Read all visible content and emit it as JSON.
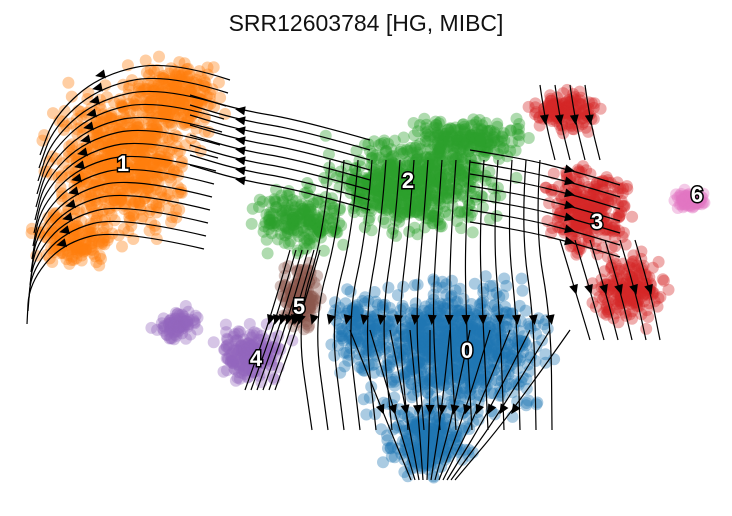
{
  "title": "SRR12603784 [HG, MIBC]",
  "clusters": [
    {
      "id": "0",
      "label": "0",
      "color": "#1f77b4"
    },
    {
      "id": "1",
      "label": "1",
      "color": "#ff7f0e"
    },
    {
      "id": "2",
      "label": "2",
      "color": "#2ca02c"
    },
    {
      "id": "3",
      "label": "3",
      "color": "#d62728"
    },
    {
      "id": "4",
      "label": "4",
      "color": "#9467bd"
    },
    {
      "id": "5",
      "label": "5",
      "color": "#8c564b"
    },
    {
      "id": "6",
      "label": "6",
      "color": "#e377c2"
    }
  ],
  "stream_color": "#000000"
}
